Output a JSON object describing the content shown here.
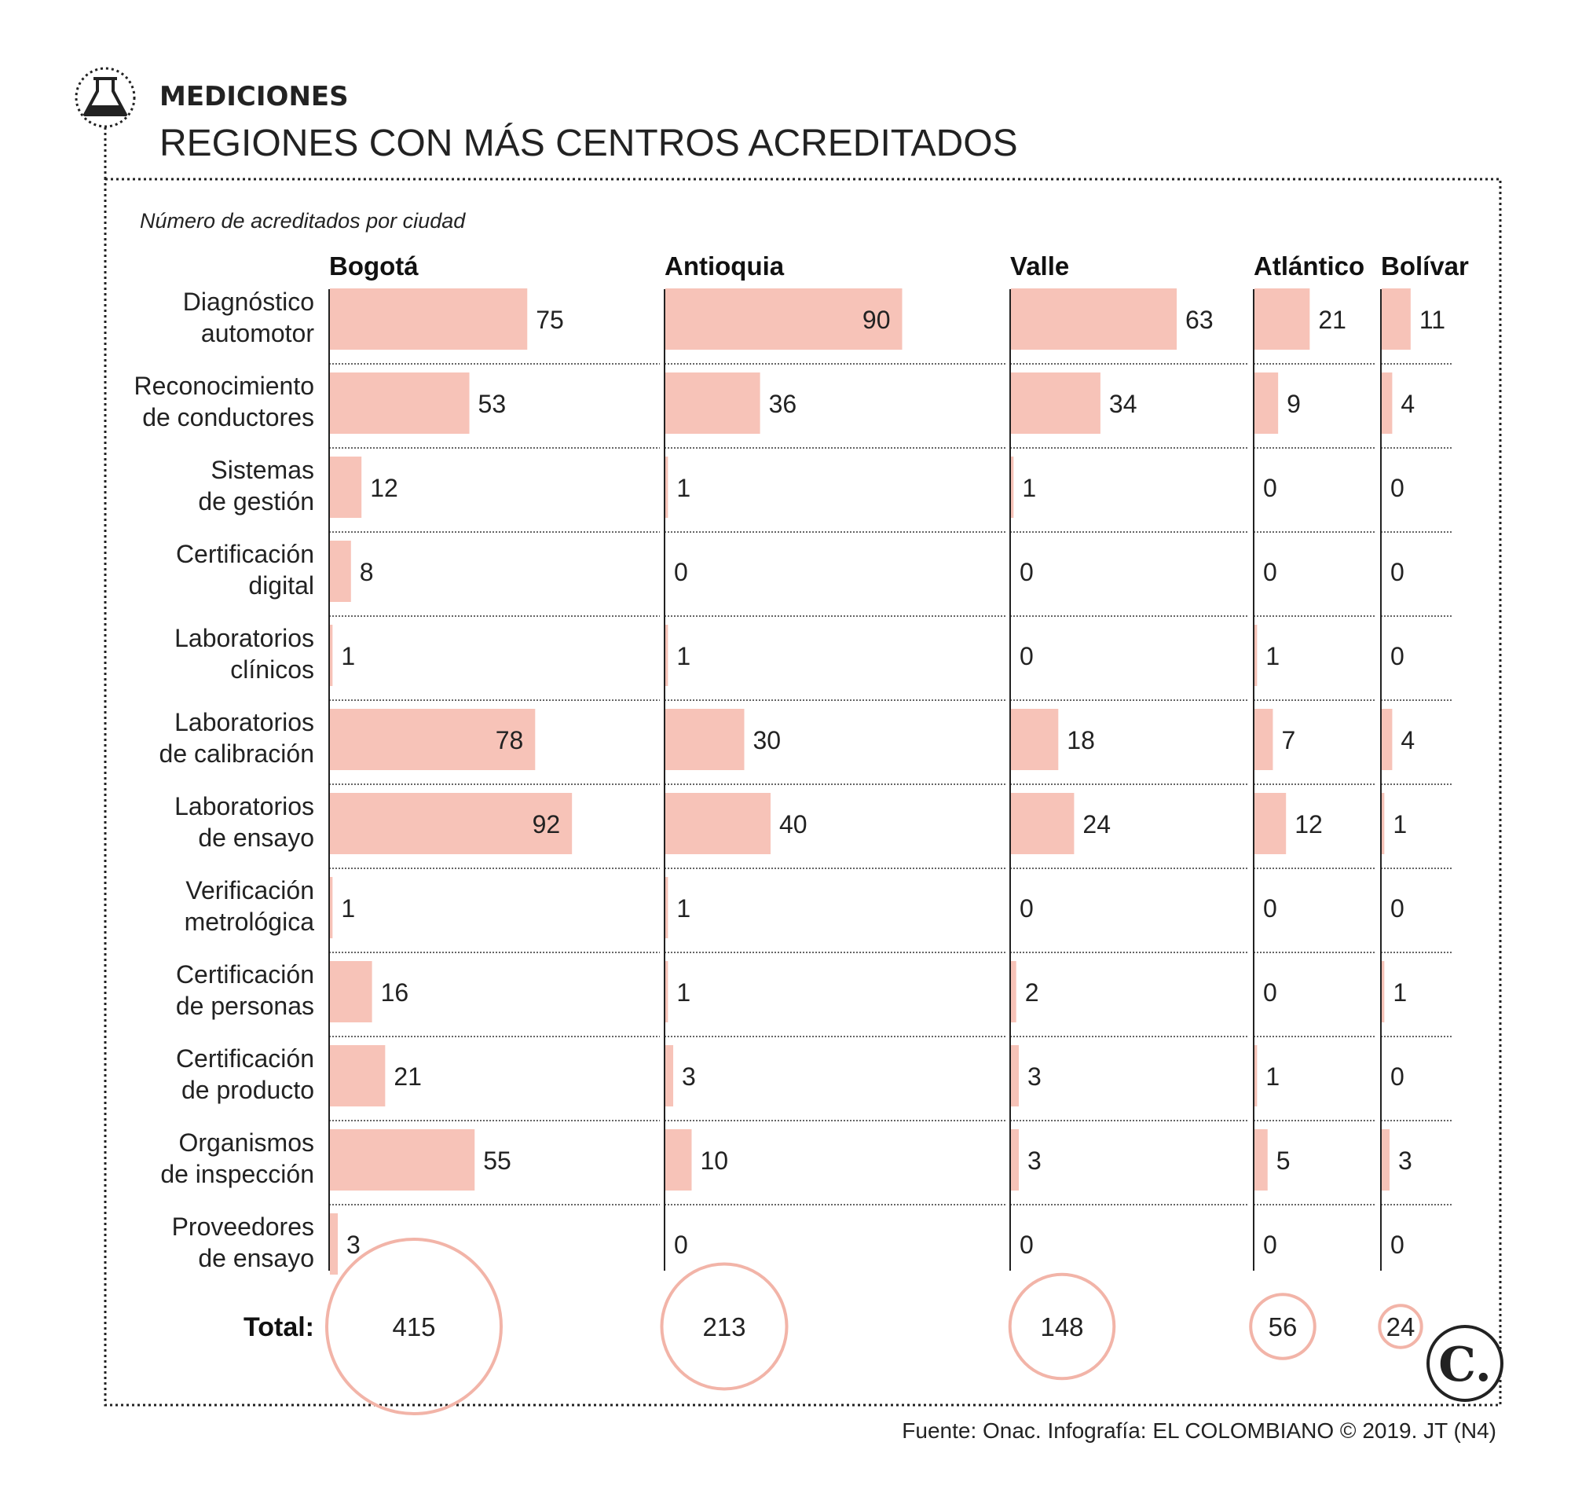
{
  "header": {
    "section": "MEDICIONES",
    "title": "REGIONES CON MÁS CENTROS ACREDITADOS",
    "subtitle": "Número de acreditados por ciudad"
  },
  "chart_data": {
    "type": "bar",
    "categories": [
      [
        "Diagnóstico",
        "automotor"
      ],
      [
        "Reconocimiento",
        "de conductores"
      ],
      [
        "Sistemas",
        "de gestión"
      ],
      [
        "Certificación",
        "digital"
      ],
      [
        "Laboratorios",
        "clínicos"
      ],
      [
        "Laboratorios",
        "de calibración"
      ],
      [
        "Laboratorios",
        "de ensayo"
      ],
      [
        "Verificación",
        "metrológica"
      ],
      [
        "Certificación",
        "de personas"
      ],
      [
        "Certificación",
        "de producto"
      ],
      [
        "Organismos",
        "de inspección"
      ],
      [
        "Proveedores",
        "de ensayo"
      ]
    ],
    "series": [
      {
        "name": "Bogotá",
        "values": [
          75,
          53,
          12,
          8,
          1,
          78,
          92,
          1,
          16,
          21,
          55,
          3
        ],
        "total": 415
      },
      {
        "name": "Antioquia",
        "values": [
          90,
          36,
          1,
          0,
          1,
          30,
          40,
          1,
          1,
          3,
          10,
          0
        ],
        "total": 213
      },
      {
        "name": "Valle",
        "values": [
          63,
          34,
          1,
          0,
          0,
          18,
          24,
          0,
          2,
          3,
          3,
          0
        ],
        "total": 148
      },
      {
        "name": "Atlántico",
        "values": [
          21,
          9,
          0,
          0,
          1,
          7,
          12,
          0,
          0,
          1,
          5,
          0
        ],
        "total": 56
      },
      {
        "name": "Bolívar",
        "values": [
          11,
          4,
          0,
          0,
          0,
          4,
          1,
          0,
          1,
          0,
          3,
          0
        ],
        "total": 24
      }
    ],
    "total_label": "Total:",
    "bar_color": "#f7c3b8",
    "circle_color": "#f2b4a8"
  },
  "footer": {
    "source": "Fuente: Onac. Infografía: EL COLOMBIANO © 2019. JT (N4)",
    "logo_letter": "C."
  },
  "icons": {
    "header_icon": "flask-icon",
    "logo": "el-colombiano-logo"
  }
}
